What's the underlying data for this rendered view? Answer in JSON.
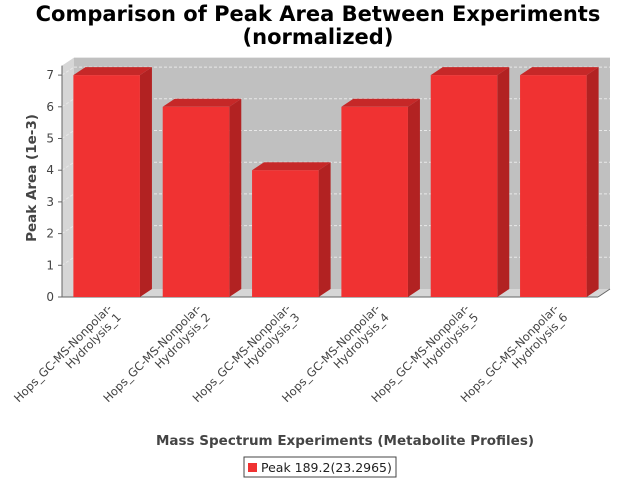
{
  "chart_data": {
    "type": "bar",
    "title_lines": [
      "Comparison of Peak Area Between Experiments",
      "(normalized)"
    ],
    "xlabel": "Mass Spectrum Experiments (Metabolite Profiles)",
    "ylabel": "Peak Area (1e-3)",
    "categories": [
      [
        "Hops_GC-MS-Nonpolar-",
        "Hydrolysis_1"
      ],
      [
        "Hops_GC-MS-Nonpolar-",
        "Hydrolysis_2"
      ],
      [
        "Hops_GC-MS-Nonpolar-",
        "Hydrolysis_3"
      ],
      [
        "Hops_GC-MS-Nonpolar-",
        "Hydrolysis_4"
      ],
      [
        "Hops_GC-MS-Nonpolar-",
        "Hydrolysis_5"
      ],
      [
        "Hops_GC-MS-Nonpolar-",
        "Hydrolysis_6"
      ]
    ],
    "series": [
      {
        "name": "Peak 189.2(23.2965)",
        "values": [
          7,
          6,
          4,
          6,
          7,
          7
        ]
      }
    ],
    "ylim": [
      0,
      7.3
    ],
    "yticks": [
      0,
      1,
      2,
      3,
      4,
      5,
      6,
      7
    ],
    "grid": true,
    "style": "3d",
    "legend_position": "bottom",
    "colors": {
      "bar_front": "#f03232",
      "bar_top": "#c62828",
      "bar_side": "#b22222",
      "plot_back": "#c0c0c0",
      "plot_floor": "#d6d6d6",
      "grid": "#e8e8e8",
      "axis": "#666666"
    }
  }
}
